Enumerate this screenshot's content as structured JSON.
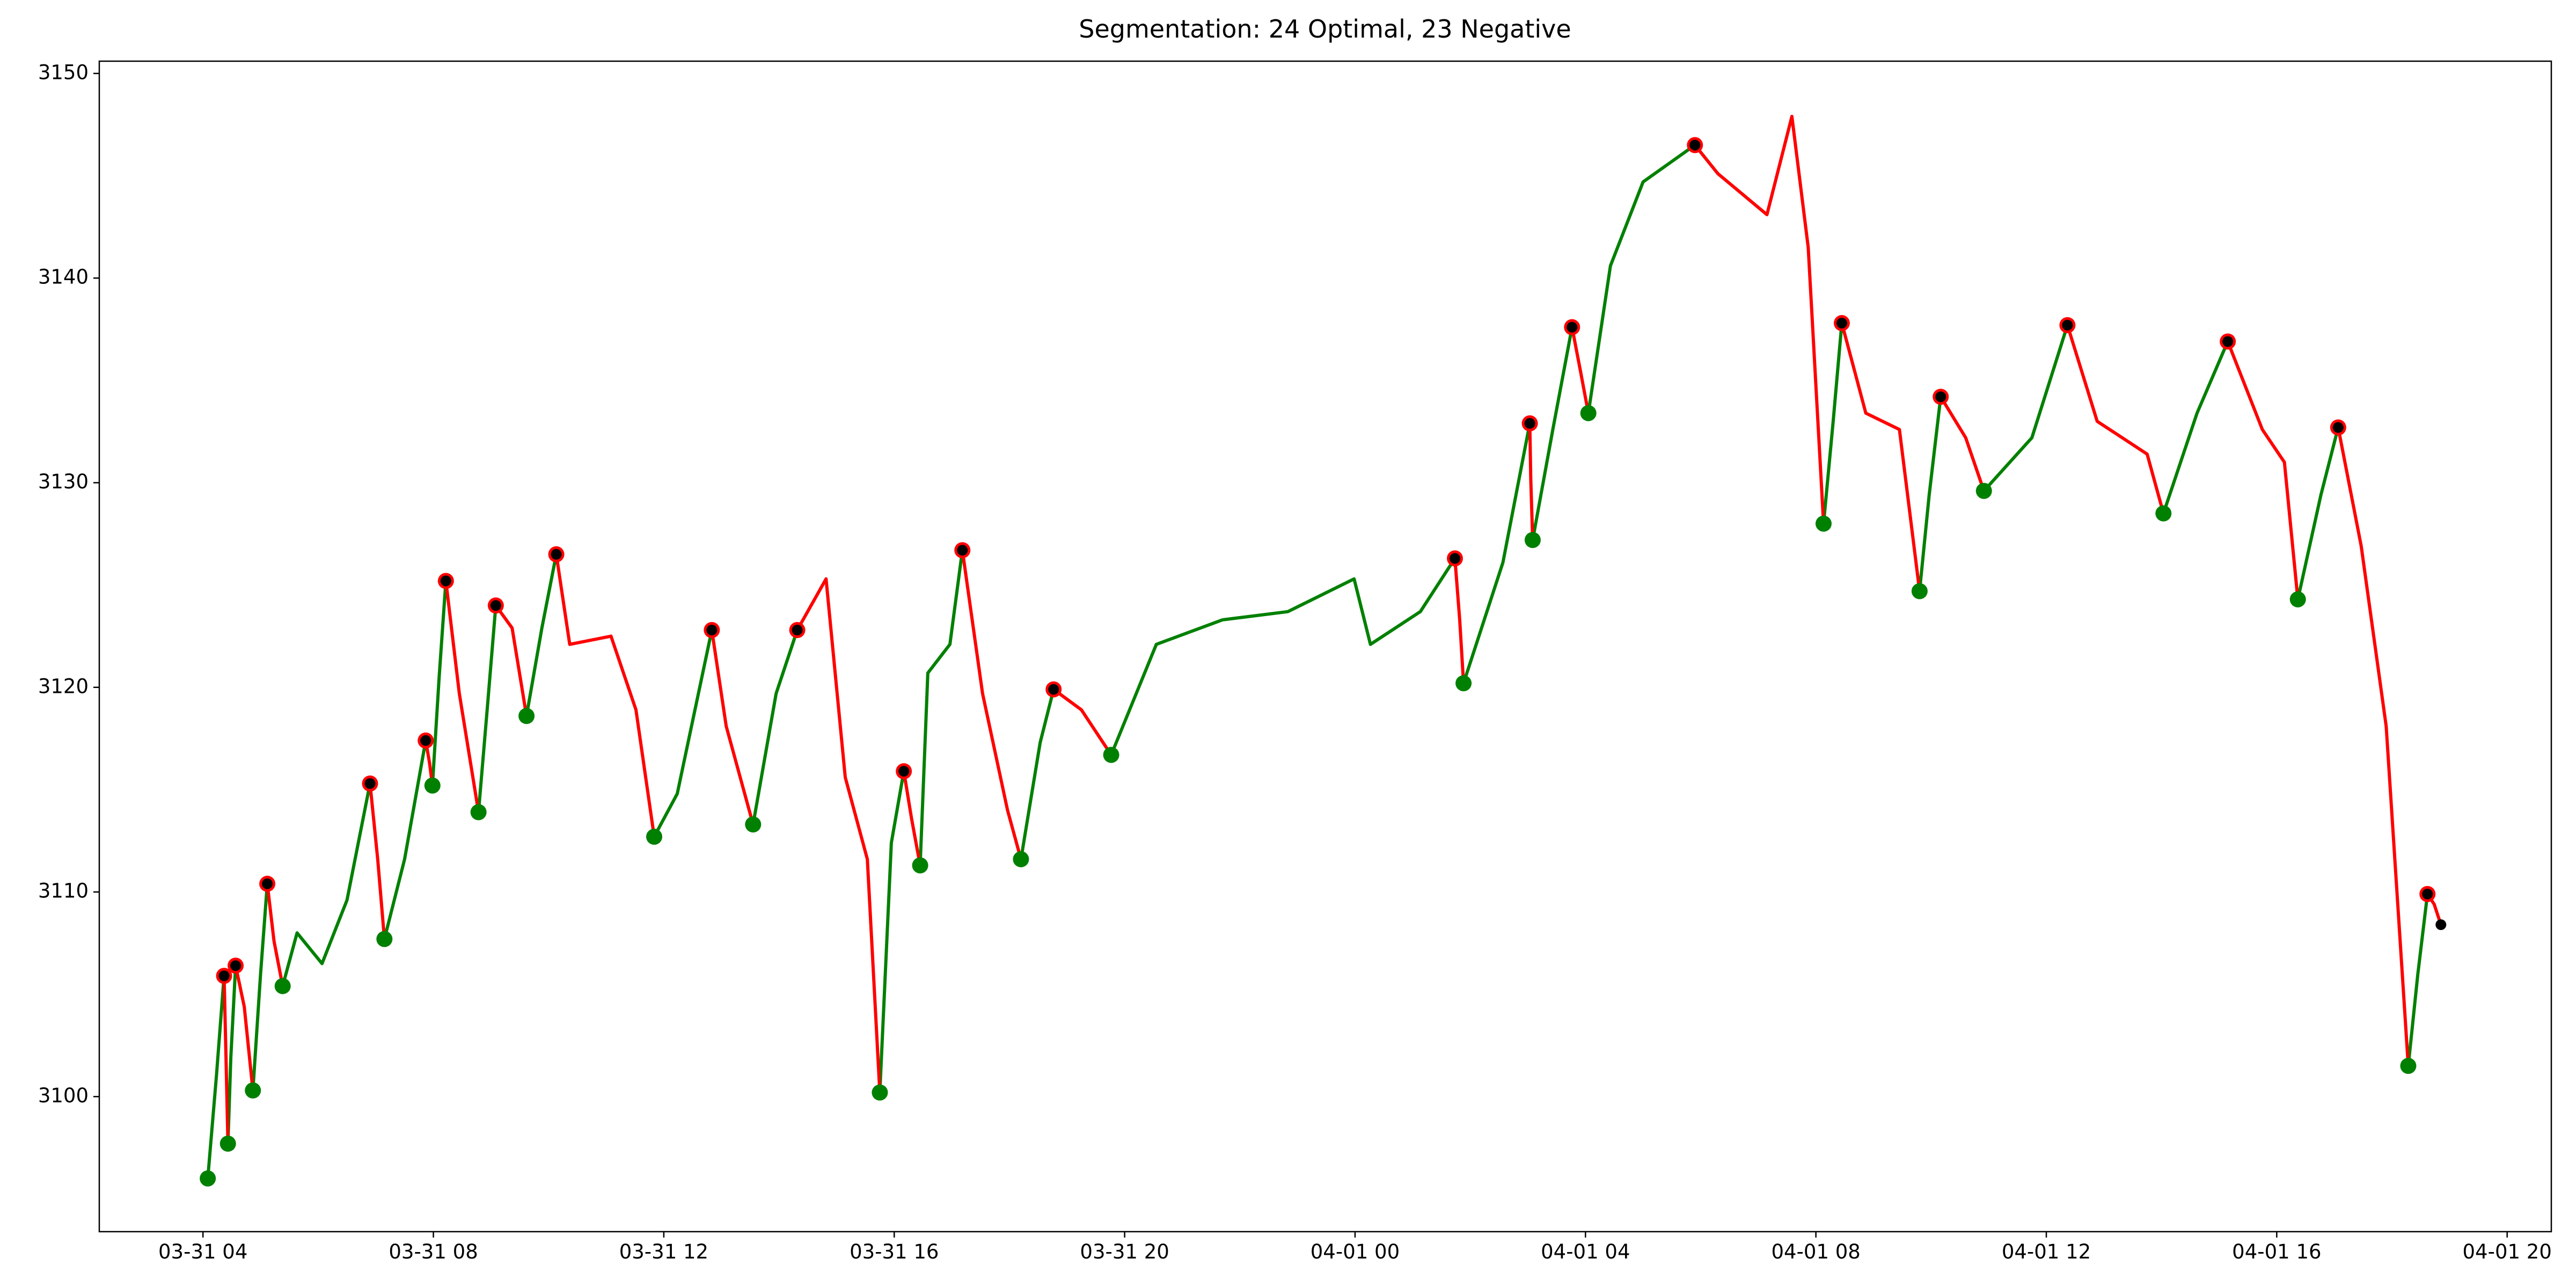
{
  "chart_data": {
    "type": "line",
    "title": "Segmentation: 24 Optimal, 23 Negative",
    "x": [
      "03-31 04:05",
      "03-31 04:14",
      "03-31 04:22",
      "03-31 04:24",
      "03-31 04:26",
      "03-31 04:29",
      "03-31 04:34",
      "03-31 04:43",
      "03-31 04:52",
      "03-31 05:00",
      "03-31 05:07",
      "03-31 05:14",
      "03-31 05:23",
      "03-31 05:38",
      "03-31 06:04",
      "03-31 06:30",
      "03-31 06:54",
      "03-31 07:02",
      "03-31 07:09",
      "03-31 07:30",
      "03-31 07:52",
      "03-31 07:56",
      "03-31 07:59",
      "03-31 08:06",
      "03-31 08:13",
      "03-31 08:27",
      "03-31 08:47",
      "03-31 08:56",
      "03-31 09:05",
      "03-31 09:22",
      "03-31 09:37",
      "03-31 09:53",
      "03-31 10:08",
      "03-31 10:22",
      "03-31 11:05",
      "03-31 11:31",
      "03-31 11:50",
      "03-31 12:14",
      "03-31 12:50",
      "03-31 13:05",
      "03-31 13:33",
      "03-31 13:57",
      "03-31 14:19",
      "03-31 14:49",
      "03-31 15:09",
      "03-31 15:32",
      "03-31 15:45",
      "03-31 15:57",
      "03-31 16:10",
      "03-31 16:18",
      "03-31 16:27",
      "03-31 16:35",
      "03-31 16:58",
      "03-31 17:11",
      "03-31 17:32",
      "03-31 17:58",
      "03-31 18:12",
      "03-31 18:32",
      "03-31 18:46",
      "03-31 19:15",
      "03-31 19:46",
      "03-31 20:33",
      "03-31 21:42",
      "03-31 22:50",
      "03-31 23:59",
      "04-01 00:16",
      "04-01 01:08",
      "04-01 01:44",
      "04-01 01:49",
      "04-01 01:53",
      "04-01 02:34",
      "04-01 03:02",
      "04-01 03:03",
      "04-01 03:05",
      "04-01 03:26",
      "04-01 03:46",
      "04-01 03:55",
      "04-01 04:03",
      "04-01 04:26",
      "04-01 05:00",
      "04-01 05:54",
      "04-01 06:18",
      "04-01 07:09",
      "04-01 07:35",
      "04-01 07:52",
      "04-01 08:08",
      "04-01 08:18",
      "04-01 08:27",
      "04-01 08:52",
      "04-01 09:27",
      "04-01 09:48",
      "04-01 09:58",
      "04-01 10:10",
      "04-01 10:36",
      "04-01 10:55",
      "04-01 11:45",
      "04-01 12:22",
      "04-01 12:53",
      "04-01 13:45",
      "04-01 14:02",
      "04-01 14:37",
      "04-01 15:09",
      "04-01 15:45",
      "04-01 16:08",
      "04-01 16:22",
      "04-01 16:46",
      "04-01 17:04",
      "04-01 17:28",
      "04-01 17:54",
      "04-01 18:17",
      "04-01 18:27",
      "04-01 18:37",
      "04-01 18:44",
      "04-01 18:51"
    ],
    "series": [
      {
        "color": "#008000",
        "values": [
          3096.0,
          3101.0,
          3105.9,
          null,
          3097.7,
          3101.9,
          3106.4,
          null,
          3100.3,
          3106.0,
          3110.4,
          null,
          3105.4,
          3108.0,
          3106.5,
          3109.6,
          3115.3,
          null,
          3107.7,
          3111.6,
          3117.4,
          null,
          3115.2,
          3120.5,
          3125.2,
          null,
          3113.9,
          3118.9,
          3124.0,
          null,
          3118.6,
          3122.9,
          3126.5,
          null,
          null,
          null,
          3112.7,
          3114.8,
          3122.8,
          null,
          3113.3,
          3119.7,
          3122.8,
          null,
          null,
          null,
          3100.2,
          3112.4,
          3115.9,
          null,
          3111.3,
          3120.7,
          3122.1,
          3126.7,
          null,
          null,
          3111.6,
          3117.3,
          3119.9,
          null,
          3116.7,
          3122.1,
          3123.3,
          3123.7,
          3125.3,
          3122.1,
          3123.7,
          3126.3,
          null,
          3120.2,
          3126.1,
          3132.9,
          null,
          3127.2,
          3132.6,
          3137.6,
          null,
          3133.4,
          3140.6,
          3144.7,
          3146.5,
          null,
          null,
          null,
          null,
          3128.0,
          3133.0,
          3137.8,
          null,
          null,
          3124.7,
          3129.4,
          3134.2,
          null,
          3129.6,
          3132.2,
          3137.7,
          null,
          null,
          3128.5,
          3133.4,
          3136.9,
          null,
          null,
          3124.3,
          3129.4,
          3132.7,
          null,
          null,
          3101.5,
          3106.0,
          3109.9,
          null,
          null
        ]
      },
      {
        "color": "#ff0000",
        "values": [
          null,
          null,
          3105.9,
          3101.9,
          3097.7,
          null,
          3106.4,
          3104.4,
          3100.3,
          null,
          3110.4,
          3107.6,
          3105.4,
          null,
          null,
          null,
          3115.3,
          3111.6,
          3107.7,
          null,
          3117.4,
          3116.3,
          3115.2,
          null,
          3125.2,
          3119.7,
          3113.9,
          null,
          3124.0,
          3122.9,
          3118.6,
          null,
          3126.5,
          3122.1,
          3122.5,
          3118.9,
          3112.7,
          null,
          3122.8,
          3118.1,
          3113.3,
          null,
          3122.8,
          3125.3,
          3115.6,
          3111.6,
          3100.2,
          null,
          3115.9,
          3113.6,
          3111.3,
          null,
          null,
          3126.7,
          3119.7,
          3114.0,
          3111.6,
          null,
          3119.9,
          3118.9,
          3116.7,
          null,
          null,
          null,
          null,
          null,
          null,
          3126.3,
          3123.3,
          3120.2,
          null,
          3132.9,
          3130.2,
          3127.2,
          null,
          3137.6,
          3135.4,
          3133.4,
          null,
          null,
          3146.5,
          3145.1,
          3143.1,
          3147.9,
          3141.5,
          3128.0,
          null,
          3137.8,
          3133.4,
          3132.6,
          3124.7,
          null,
          3134.2,
          3132.2,
          3129.6,
          null,
          3137.7,
          3133.0,
          3131.4,
          3128.5,
          null,
          3136.9,
          3132.6,
          3131.0,
          3124.3,
          null,
          3132.7,
          3126.9,
          3118.1,
          3101.5,
          null,
          3109.9,
          3109.4,
          3108.4
        ]
      }
    ],
    "points": [
      {
        "color": "#008000",
        "x": [
          "03-31 04:05",
          "03-31 04:26",
          "03-31 04:52",
          "03-31 05:23",
          "03-31 07:09",
          "03-31 07:59",
          "03-31 08:47",
          "03-31 09:37",
          "03-31 11:50",
          "03-31 13:33",
          "03-31 15:45",
          "03-31 16:27",
          "03-31 18:12",
          "03-31 19:46",
          "04-01 01:53",
          "04-01 03:05",
          "04-01 04:03",
          "04-01 08:08",
          "04-01 09:48",
          "04-01 10:55",
          "04-01 14:02",
          "04-01 16:22",
          "04-01 18:17"
        ],
        "values": [
          3096.0,
          3097.7,
          3100.3,
          3105.4,
          3107.7,
          3115.2,
          3113.9,
          3118.6,
          3112.7,
          3113.3,
          3100.2,
          3111.3,
          3111.6,
          3116.7,
          3120.2,
          3127.2,
          3133.4,
          3128.0,
          3124.7,
          3129.6,
          3128.5,
          3124.3,
          3101.5
        ]
      },
      {
        "color": "#ff0000",
        "x": [
          "03-31 04:22",
          "03-31 04:34",
          "03-31 05:07",
          "03-31 06:54",
          "03-31 07:52",
          "03-31 08:13",
          "03-31 09:05",
          "03-31 10:08",
          "03-31 12:50",
          "03-31 14:19",
          "03-31 16:10",
          "03-31 17:11",
          "03-31 18:46",
          "04-01 01:44",
          "04-01 03:02",
          "04-01 03:46",
          "04-01 05:54",
          "04-01 08:27",
          "04-01 10:10",
          "04-01 12:22",
          "04-01 15:09",
          "04-01 17:04",
          "04-01 18:37"
        ],
        "values": [
          3105.9,
          3106.4,
          3110.4,
          3115.3,
          3117.4,
          3125.2,
          3124.0,
          3126.5,
          3122.8,
          3122.8,
          3115.9,
          3126.7,
          3119.9,
          3126.3,
          3132.9,
          3137.6,
          3146.5,
          3137.8,
          3134.2,
          3137.7,
          3136.9,
          3132.7,
          3109.9
        ]
      },
      {
        "color": "#000000",
        "x": [
          "03-31 04:22",
          "03-31 04:34",
          "03-31 05:07",
          "03-31 06:54",
          "03-31 07:52",
          "03-31 08:13",
          "03-31 09:05",
          "03-31 10:08",
          "03-31 12:50",
          "03-31 14:19",
          "03-31 16:10",
          "03-31 17:11",
          "03-31 18:46",
          "04-01 01:44",
          "04-01 03:02",
          "04-01 03:46",
          "04-01 05:54",
          "04-01 08:27",
          "04-01 10:10",
          "04-01 12:22",
          "04-01 15:09",
          "04-01 17:04",
          "04-01 18:37",
          "04-01 18:51"
        ],
        "values": [
          3105.9,
          3106.4,
          3110.4,
          3115.3,
          3117.4,
          3125.2,
          3124.0,
          3126.5,
          3122.8,
          3122.8,
          3115.9,
          3126.7,
          3119.9,
          3126.3,
          3132.9,
          3137.6,
          3146.5,
          3137.8,
          3134.2,
          3137.7,
          3136.9,
          3132.7,
          3109.9,
          3108.4
        ]
      }
    ],
    "xlim": [
      "03-31 02:12",
      "04-01 20:46"
    ],
    "xticks": [
      {
        "value": "03-31 04:00",
        "label": "03-31 04"
      },
      {
        "value": "03-31 08:00",
        "label": "03-31 08"
      },
      {
        "value": "03-31 12:00",
        "label": "03-31 12"
      },
      {
        "value": "03-31 16:00",
        "label": "03-31 16"
      },
      {
        "value": "03-31 20:00",
        "label": "03-31 20"
      },
      {
        "value": "04-01 00:00",
        "label": "04-01 00"
      },
      {
        "value": "04-01 04:00",
        "label": "04-01 04"
      },
      {
        "value": "04-01 08:00",
        "label": "04-01 08"
      },
      {
        "value": "04-01 12:00",
        "label": "04-01 12"
      },
      {
        "value": "04-01 16:00",
        "label": "04-01 16"
      },
      {
        "value": "04-01 20:00",
        "label": "04-01 20"
      }
    ],
    "ylim": [
      3093.4,
      3150.6
    ],
    "yticks": [
      3100,
      3110,
      3120,
      3130,
      3140,
      3150
    ],
    "grid": false
  }
}
